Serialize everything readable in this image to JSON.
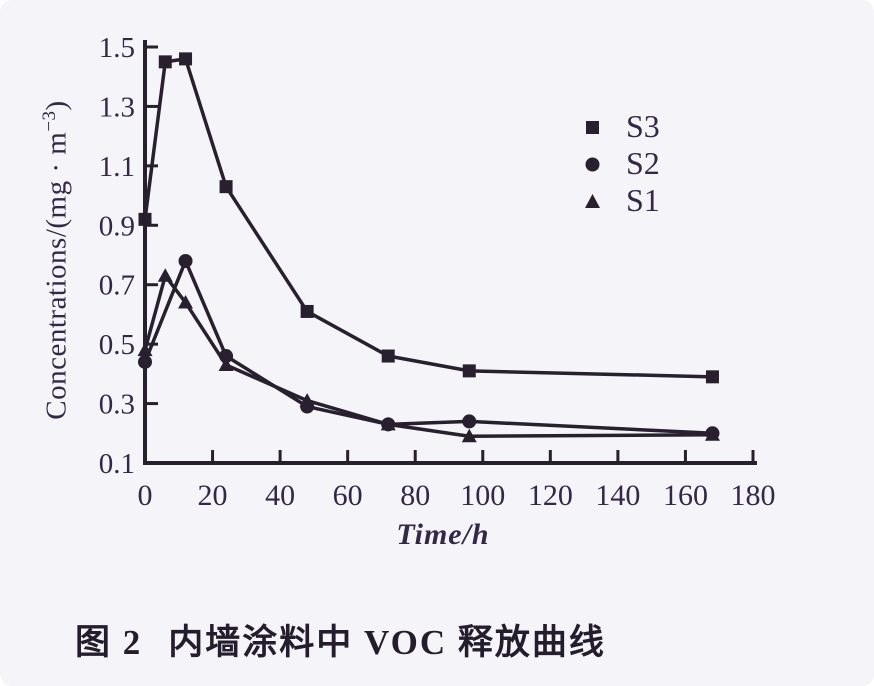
{
  "figure": {
    "caption_prefix": "图 2",
    "caption_text": "内墙涂料中 VOC 释放曲线"
  },
  "chart_data": {
    "type": "line",
    "title": "",
    "xlabel": "Time/h",
    "ylabel": "Concentrations/(mg · m⁻³)",
    "ylabel_parts": {
      "main": "Concentrations/(mg · m",
      "sup": "−3",
      "close": ")"
    },
    "xlim": [
      0,
      180
    ],
    "ylim": [
      0.1,
      1.5
    ],
    "x_ticks": [
      0,
      20,
      40,
      60,
      80,
      100,
      120,
      140,
      160,
      180
    ],
    "y_ticks": [
      0.1,
      0.3,
      0.5,
      0.7,
      0.9,
      1.1,
      1.3,
      1.5
    ],
    "grid": false,
    "legend_position": "upper right inside",
    "line_color": "#29202f",
    "text_color": "#332947",
    "series": [
      {
        "name": "S3",
        "marker": "square",
        "x": [
          0,
          6,
          12,
          24,
          48,
          72,
          96,
          168
        ],
        "y": [
          0.92,
          1.45,
          1.46,
          1.03,
          0.61,
          0.46,
          0.41,
          0.39
        ]
      },
      {
        "name": "S2",
        "marker": "circle",
        "x": [
          0,
          12,
          24,
          48,
          72,
          96,
          168
        ],
        "y": [
          0.44,
          0.78,
          0.46,
          0.29,
          0.23,
          0.24,
          0.2
        ]
      },
      {
        "name": "S1",
        "marker": "triangle",
        "x": [
          0,
          6,
          12,
          24,
          48,
          72,
          96,
          168
        ],
        "y": [
          0.48,
          0.73,
          0.64,
          0.43,
          0.31,
          0.23,
          0.19,
          0.195
        ]
      }
    ]
  }
}
